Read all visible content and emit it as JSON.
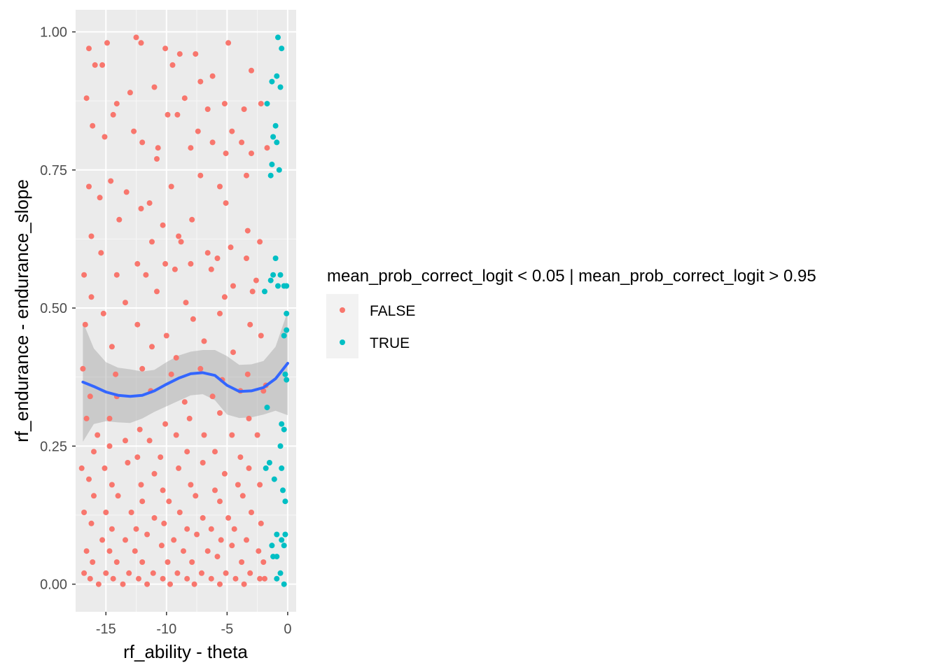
{
  "chart_data": {
    "type": "scatter",
    "xlabel": "rf_ability - theta",
    "ylabel": "rf_endurance - endurance_slope",
    "xlim": [
      -17.5,
      0.7
    ],
    "ylim": [
      -0.05,
      1.04
    ],
    "x_ticks": [
      -15,
      -10,
      -5,
      0
    ],
    "x_tick_labels": [
      "-15",
      "-10",
      "-5",
      "0"
    ],
    "y_ticks": [
      0,
      0.25,
      0.5,
      0.75,
      1.0
    ],
    "y_tick_labels": [
      "0.00",
      "0.25",
      "0.50",
      "0.75",
      "1.00"
    ],
    "grid": true,
    "legend": {
      "title": "mean_prob_correct_logit < 0.05 | mean_prob_correct_logit > 0.95",
      "placement": "right",
      "entries": [
        {
          "label": "FALSE",
          "color": "#F8766D"
        },
        {
          "label": "TRUE",
          "color": "#00BFC4"
        }
      ]
    },
    "series": [
      {
        "name": "FALSE",
        "color": "#F8766D",
        "points": [
          [
            -12.5,
            0.99
          ],
          [
            -12.1,
            0.98
          ],
          [
            -14.9,
            0.98
          ],
          [
            -16.4,
            0.97
          ],
          [
            -15.9,
            0.94
          ],
          [
            -15.3,
            0.94
          ],
          [
            -10.1,
            0.97
          ],
          [
            -8.9,
            0.96
          ],
          [
            -7.6,
            0.96
          ],
          [
            -4.9,
            0.98
          ],
          [
            -3.0,
            0.93
          ],
          [
            -9.5,
            0.94
          ],
          [
            -6.2,
            0.92
          ],
          [
            -11.0,
            0.9
          ],
          [
            -13.0,
            0.89
          ],
          [
            -16.6,
            0.88
          ],
          [
            -14.1,
            0.87
          ],
          [
            -7.2,
            0.91
          ],
          [
            -8.5,
            0.88
          ],
          [
            -9.9,
            0.85
          ],
          [
            -6.6,
            0.86
          ],
          [
            -5.2,
            0.87
          ],
          [
            -3.6,
            0.86
          ],
          [
            -2.2,
            0.87
          ],
          [
            -16.1,
            0.83
          ],
          [
            -14.4,
            0.85
          ],
          [
            -12.7,
            0.82
          ],
          [
            -10.7,
            0.79
          ],
          [
            -9.1,
            0.85
          ],
          [
            -7.4,
            0.82
          ],
          [
            -4.6,
            0.82
          ],
          [
            -3.8,
            0.8
          ],
          [
            -15.1,
            0.81
          ],
          [
            -12.0,
            0.8
          ],
          [
            -10.8,
            0.77
          ],
          [
            -8.0,
            0.79
          ],
          [
            -6.2,
            0.8
          ],
          [
            -5.1,
            0.78
          ],
          [
            -3.0,
            0.78
          ],
          [
            -1.7,
            0.79
          ],
          [
            -16.4,
            0.72
          ],
          [
            -14.6,
            0.73
          ],
          [
            -13.3,
            0.71
          ],
          [
            -11.4,
            0.69
          ],
          [
            -9.6,
            0.72
          ],
          [
            -7.2,
            0.74
          ],
          [
            -5.6,
            0.72
          ],
          [
            -3.4,
            0.74
          ],
          [
            -15.5,
            0.7
          ],
          [
            -12.1,
            0.68
          ],
          [
            -10.3,
            0.65
          ],
          [
            -9.0,
            0.63
          ],
          [
            -7.9,
            0.66
          ],
          [
            -5.1,
            0.69
          ],
          [
            -3.3,
            0.64
          ],
          [
            -16.2,
            0.63
          ],
          [
            -13.9,
            0.66
          ],
          [
            -11.2,
            0.62
          ],
          [
            -8.8,
            0.62
          ],
          [
            -6.6,
            0.6
          ],
          [
            -4.7,
            0.61
          ],
          [
            -2.3,
            0.62
          ],
          [
            -15.4,
            0.6
          ],
          [
            -12.4,
            0.58
          ],
          [
            -10.1,
            0.58
          ],
          [
            -8.0,
            0.58
          ],
          [
            -5.8,
            0.59
          ],
          [
            -3.4,
            0.59
          ],
          [
            -16.8,
            0.56
          ],
          [
            -14.1,
            0.56
          ],
          [
            -11.7,
            0.56
          ],
          [
            -9.3,
            0.57
          ],
          [
            -6.3,
            0.57
          ],
          [
            -4.5,
            0.54
          ],
          [
            -2.6,
            0.55
          ],
          [
            -16.2,
            0.52
          ],
          [
            -13.4,
            0.51
          ],
          [
            -10.8,
            0.53
          ],
          [
            -8.4,
            0.51
          ],
          [
            -5.2,
            0.52
          ],
          [
            -2.9,
            0.53
          ],
          [
            -15.2,
            0.49
          ],
          [
            -12.4,
            0.47
          ],
          [
            -10.0,
            0.45
          ],
          [
            -7.8,
            0.48
          ],
          [
            -5.6,
            0.49
          ],
          [
            -3.1,
            0.47
          ],
          [
            -16.7,
            0.47
          ],
          [
            -14.5,
            0.43
          ],
          [
            -11.2,
            0.43
          ],
          [
            -9.2,
            0.41
          ],
          [
            -6.9,
            0.44
          ],
          [
            -4.5,
            0.42
          ],
          [
            -2.2,
            0.45
          ],
          [
            -16.9,
            0.39
          ],
          [
            -14.2,
            0.38
          ],
          [
            -12.0,
            0.39
          ],
          [
            -9.6,
            0.38
          ],
          [
            -7.2,
            0.39
          ],
          [
            -5.4,
            0.37
          ],
          [
            -3.3,
            0.38
          ],
          [
            -1.8,
            0.36
          ],
          [
            -16.3,
            0.34
          ],
          [
            -14.1,
            0.34
          ],
          [
            -11.3,
            0.35
          ],
          [
            -8.5,
            0.33
          ],
          [
            -6.2,
            0.34
          ],
          [
            -3.9,
            0.35
          ],
          [
            -2.0,
            0.35
          ],
          [
            -16.6,
            0.3
          ],
          [
            -14.7,
            0.3
          ],
          [
            -12.2,
            0.28
          ],
          [
            -10.1,
            0.29
          ],
          [
            -8.1,
            0.3
          ],
          [
            -5.6,
            0.31
          ],
          [
            -3.2,
            0.3
          ],
          [
            -15.7,
            0.27
          ],
          [
            -13.4,
            0.26
          ],
          [
            -11.4,
            0.26
          ],
          [
            -9.2,
            0.27
          ],
          [
            -6.9,
            0.27
          ],
          [
            -4.6,
            0.27
          ],
          [
            -2.5,
            0.27
          ],
          [
            -16.0,
            0.24
          ],
          [
            -14.7,
            0.25
          ],
          [
            -12.4,
            0.23
          ],
          [
            -10.5,
            0.23
          ],
          [
            -8.3,
            0.24
          ],
          [
            -6.0,
            0.24
          ],
          [
            -3.9,
            0.23
          ],
          [
            -17.0,
            0.21
          ],
          [
            -15.1,
            0.21
          ],
          [
            -13.2,
            0.22
          ],
          [
            -11.0,
            0.2
          ],
          [
            -9.0,
            0.21
          ],
          [
            -7.0,
            0.22
          ],
          [
            -5.2,
            0.2
          ],
          [
            -3.2,
            0.21
          ],
          [
            -16.4,
            0.19
          ],
          [
            -14.5,
            0.18
          ],
          [
            -12.1,
            0.18
          ],
          [
            -10.3,
            0.17
          ],
          [
            -8.0,
            0.18
          ],
          [
            -6.0,
            0.17
          ],
          [
            -4.1,
            0.18
          ],
          [
            -2.3,
            0.18
          ],
          [
            -16.0,
            0.16
          ],
          [
            -14.0,
            0.16
          ],
          [
            -12.0,
            0.15
          ],
          [
            -9.8,
            0.15
          ],
          [
            -7.6,
            0.16
          ],
          [
            -5.6,
            0.15
          ],
          [
            -3.7,
            0.16
          ],
          [
            -16.8,
            0.13
          ],
          [
            -15.0,
            0.13
          ],
          [
            -12.9,
            0.13
          ],
          [
            -11.0,
            0.12
          ],
          [
            -8.9,
            0.13
          ],
          [
            -7.0,
            0.12
          ],
          [
            -4.9,
            0.12
          ],
          [
            -3.0,
            0.13
          ],
          [
            -16.2,
            0.11
          ],
          [
            -14.5,
            0.1
          ],
          [
            -12.5,
            0.1
          ],
          [
            -10.2,
            0.11
          ],
          [
            -8.3,
            0.1
          ],
          [
            -6.3,
            0.1
          ],
          [
            -4.4,
            0.1
          ],
          [
            -2.2,
            0.11
          ],
          [
            -15.3,
            0.08
          ],
          [
            -13.4,
            0.08
          ],
          [
            -11.6,
            0.09
          ],
          [
            -9.4,
            0.08
          ],
          [
            -7.5,
            0.09
          ],
          [
            -5.5,
            0.08
          ],
          [
            -3.4,
            0.08
          ],
          [
            -16.6,
            0.06
          ],
          [
            -14.7,
            0.06
          ],
          [
            -12.6,
            0.06
          ],
          [
            -10.4,
            0.07
          ],
          [
            -8.6,
            0.06
          ],
          [
            -6.6,
            0.06
          ],
          [
            -4.6,
            0.07
          ],
          [
            -2.4,
            0.06
          ],
          [
            -16.1,
            0.04
          ],
          [
            -14.1,
            0.04
          ],
          [
            -12.0,
            0.04
          ],
          [
            -9.9,
            0.04
          ],
          [
            -7.9,
            0.04
          ],
          [
            -5.8,
            0.05
          ],
          [
            -3.8,
            0.04
          ],
          [
            -2.0,
            0.04
          ],
          [
            -16.8,
            0.02
          ],
          [
            -15.0,
            0.02
          ],
          [
            -13.1,
            0.02
          ],
          [
            -11.1,
            0.02
          ],
          [
            -9.1,
            0.02
          ],
          [
            -7.1,
            0.02
          ],
          [
            -5.1,
            0.02
          ],
          [
            -3.1,
            0.02
          ],
          [
            -16.3,
            0.01
          ],
          [
            -14.4,
            0.01
          ],
          [
            -12.3,
            0.01
          ],
          [
            -10.3,
            0.01
          ],
          [
            -8.3,
            0.01
          ],
          [
            -6.3,
            0.01
          ],
          [
            -4.3,
            0.01
          ],
          [
            -2.3,
            0.01
          ],
          [
            -15.6,
            0.0
          ],
          [
            -13.6,
            0.0
          ],
          [
            -11.6,
            0.0
          ],
          [
            -9.7,
            0.0
          ],
          [
            -7.7,
            0.0
          ],
          [
            -5.6,
            0.0
          ],
          [
            -3.6,
            0.0
          ],
          [
            -1.9,
            0.01
          ]
        ]
      },
      {
        "name": "TRUE",
        "color": "#00BFC4",
        "points": [
          [
            -0.8,
            0.99
          ],
          [
            -0.5,
            0.97
          ],
          [
            -0.9,
            0.92
          ],
          [
            -1.3,
            0.91
          ],
          [
            -0.6,
            0.9
          ],
          [
            -1.7,
            0.87
          ],
          [
            -1.0,
            0.83
          ],
          [
            -1.2,
            0.81
          ],
          [
            -0.9,
            0.8
          ],
          [
            -1.3,
            0.76
          ],
          [
            -0.7,
            0.75
          ],
          [
            -1.4,
            0.74
          ],
          [
            -1.0,
            0.59
          ],
          [
            -0.6,
            0.56
          ],
          [
            -1.2,
            0.56
          ],
          [
            -0.3,
            0.54
          ],
          [
            -1.4,
            0.55
          ],
          [
            -0.8,
            0.54
          ],
          [
            -1.9,
            0.53
          ],
          [
            -0.1,
            0.54
          ],
          [
            -0.1,
            0.49
          ],
          [
            -0.3,
            0.45
          ],
          [
            -0.1,
            0.46
          ],
          [
            -0.2,
            0.38
          ],
          [
            -0.1,
            0.37
          ],
          [
            -1.7,
            0.32
          ],
          [
            -0.5,
            0.29
          ],
          [
            -0.3,
            0.28
          ],
          [
            -0.6,
            0.25
          ],
          [
            -1.5,
            0.22
          ],
          [
            -1.8,
            0.21
          ],
          [
            -0.5,
            0.21
          ],
          [
            -1.1,
            0.19
          ],
          [
            -0.4,
            0.17
          ],
          [
            -0.2,
            0.15
          ],
          [
            -0.9,
            0.09
          ],
          [
            -0.2,
            0.09
          ],
          [
            -1.3,
            0.07
          ],
          [
            -0.5,
            0.08
          ],
          [
            -0.3,
            0.07
          ],
          [
            -1.2,
            0.05
          ],
          [
            -0.9,
            0.05
          ],
          [
            -0.6,
            0.02
          ],
          [
            -0.9,
            0.01
          ],
          [
            -0.3,
            0.0
          ]
        ]
      }
    ],
    "smooth": {
      "color": "#3366FF",
      "ribbon_color": "#999999",
      "x": [
        -16.9,
        -16.0,
        -15.0,
        -14.0,
        -13.0,
        -12.0,
        -11.0,
        -10.0,
        -9.0,
        -8.0,
        -7.0,
        -6.0,
        -5.0,
        -4.0,
        -3.0,
        -2.0,
        -1.0,
        0.0
      ],
      "y": [
        0.366,
        0.358,
        0.348,
        0.342,
        0.34,
        0.342,
        0.35,
        0.362,
        0.373,
        0.381,
        0.383,
        0.378,
        0.36,
        0.349,
        0.35,
        0.356,
        0.372,
        0.4
      ],
      "lower": [
        0.258,
        0.29,
        0.295,
        0.293,
        0.292,
        0.3,
        0.312,
        0.322,
        0.332,
        0.342,
        0.344,
        0.333,
        0.307,
        0.301,
        0.302,
        0.307,
        0.314,
        0.306
      ],
      "upper": [
        0.475,
        0.427,
        0.402,
        0.392,
        0.389,
        0.385,
        0.388,
        0.402,
        0.414,
        0.421,
        0.424,
        0.424,
        0.413,
        0.397,
        0.398,
        0.404,
        0.43,
        0.494
      ]
    }
  }
}
